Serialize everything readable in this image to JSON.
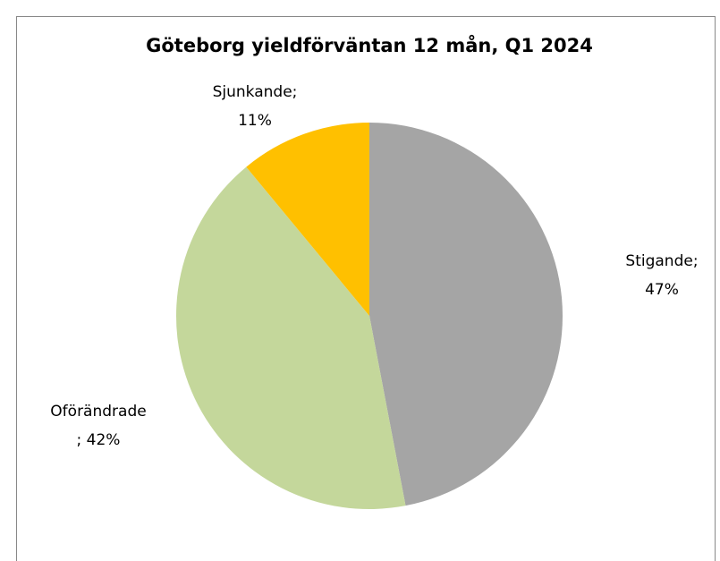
{
  "chart_data": {
    "type": "pie",
    "title": "Göteborg yieldförväntan 12 mån, Q1 2024",
    "values": [
      47,
      42,
      11
    ],
    "value_labels": [
      [
        "Stigande;",
        "47%"
      ],
      [
        "Oförändrade",
        "; 42%"
      ],
      [
        "Sjunkande;",
        "11%"
      ]
    ],
    "colors": [
      "#a5a5a5",
      "#c4d79b",
      "#ffc000"
    ]
  }
}
